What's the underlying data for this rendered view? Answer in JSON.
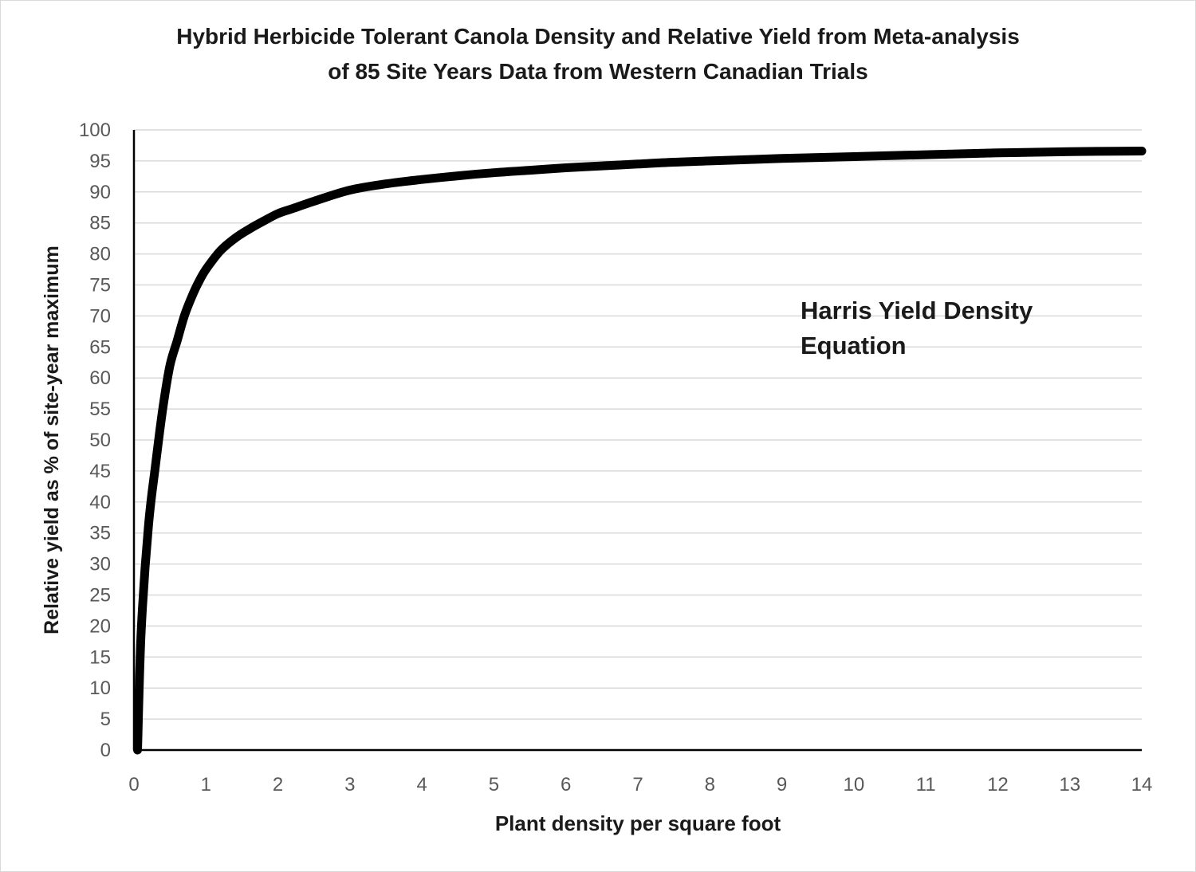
{
  "chart_data": {
    "type": "line",
    "title_line1": "Hybrid Herbicide Tolerant Canola Density and Relative Yield from Meta-analysis",
    "title_line2": "of 85 Site Years Data from Western Canadian Trials",
    "xlabel": "Plant density per square foot",
    "ylabel": "Relative yield as % of site-year maximum",
    "xlim": [
      0,
      14
    ],
    "ylim": [
      0,
      100
    ],
    "x_ticks": [
      "0",
      "1",
      "2",
      "3",
      "4",
      "5",
      "6",
      "7",
      "8",
      "9",
      "10",
      "11",
      "12",
      "13",
      "14"
    ],
    "y_ticks": [
      "0",
      "5",
      "10",
      "15",
      "20",
      "25",
      "30",
      "35",
      "40",
      "45",
      "50",
      "55",
      "60",
      "65",
      "70",
      "75",
      "80",
      "85",
      "90",
      "95",
      "100"
    ],
    "grid": "horizontal",
    "annotation": [
      "Harris Yield Density",
      "Equation"
    ],
    "series": [
      {
        "color": "#000000",
        "x": [
          0.05,
          0.1,
          0.2,
          0.3,
          0.4,
          0.5,
          0.6,
          0.7,
          0.8,
          0.9,
          1.0,
          1.2,
          1.4,
          1.6,
          1.8,
          2.0,
          2.2,
          2.5,
          3.0,
          3.5,
          4.0,
          4.5,
          5.0,
          5.5,
          6.0,
          6.5,
          7.0,
          7.5,
          8.0,
          9.0,
          10.0,
          11.0,
          12.0,
          13.0,
          14.0
        ],
        "y": [
          0,
          19,
          36,
          46,
          55,
          62,
          66,
          70,
          73,
          75.5,
          77.5,
          80.5,
          82.5,
          84,
          85.3,
          86.5,
          87.3,
          88.5,
          90.3,
          91.3,
          92.0,
          92.6,
          93.1,
          93.5,
          93.9,
          94.2,
          94.5,
          94.8,
          95.0,
          95.4,
          95.7,
          96.0,
          96.3,
          96.5,
          96.6
        ]
      }
    ]
  }
}
